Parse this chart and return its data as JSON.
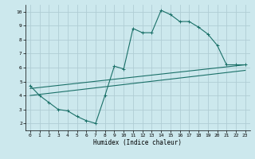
{
  "xlabel": "Humidex (Indice chaleur)",
  "xlim": [
    -0.5,
    23.5
  ],
  "ylim": [
    1.5,
    10.5
  ],
  "yticks": [
    2,
    3,
    4,
    5,
    6,
    7,
    8,
    9,
    10
  ],
  "xticks": [
    0,
    1,
    2,
    3,
    4,
    5,
    6,
    7,
    8,
    9,
    10,
    11,
    12,
    13,
    14,
    15,
    16,
    17,
    18,
    19,
    20,
    21,
    22,
    23
  ],
  "background_color": "#cce8ed",
  "grid_color": "#b0cdd4",
  "line_color": "#1a7068",
  "line1_x": [
    0,
    1,
    2,
    3,
    4,
    5,
    6,
    7,
    8,
    9,
    10,
    11,
    12,
    13,
    14,
    15,
    16,
    17,
    18,
    19,
    20,
    21,
    22,
    23
  ],
  "line1_y": [
    4.7,
    4.0,
    3.5,
    3.0,
    2.9,
    2.5,
    2.2,
    2.0,
    4.0,
    6.1,
    5.9,
    8.8,
    8.5,
    8.5,
    10.1,
    9.8,
    9.3,
    9.3,
    8.9,
    8.4,
    7.6,
    6.2,
    6.2,
    6.2
  ],
  "line2_x": [
    0,
    23
  ],
  "line2_y": [
    4.5,
    6.2
  ],
  "line3_x": [
    0,
    23
  ],
  "line3_y": [
    4.0,
    5.8
  ],
  "marker": "+"
}
